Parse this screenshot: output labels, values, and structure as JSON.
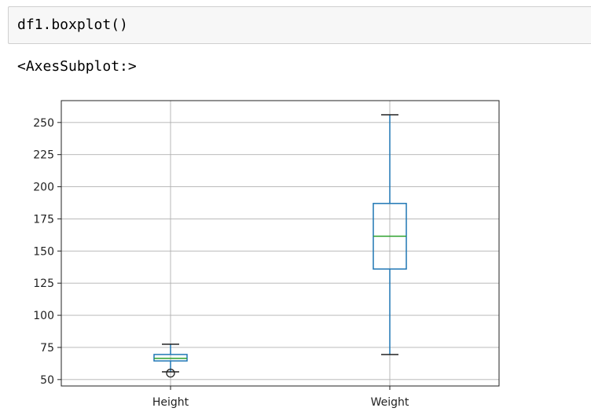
{
  "cell": {
    "code": "df1.boxplot()",
    "output": "<AxesSubplot:>"
  },
  "chart_data": {
    "type": "boxplot",
    "categories": [
      "Height",
      "Weight"
    ],
    "boxes": [
      {
        "category": "Height",
        "whisker_low": 56,
        "q1": 64.5,
        "median": 66.5,
        "q3": 69.5,
        "whisker_high": 77.5,
        "outliers": [
          55
        ]
      },
      {
        "category": "Weight",
        "whisker_low": 69.5,
        "q1": 136,
        "median": 161.5,
        "q3": 187,
        "whisker_high": 256,
        "outliers": []
      }
    ],
    "ylim": [
      45,
      267
    ],
    "yticks": [
      50,
      75,
      100,
      125,
      150,
      175,
      200,
      225,
      250
    ],
    "grid": true,
    "colors": {
      "box": "#1f77b4",
      "median": "#2ca02c",
      "grid": "#b0b0b0"
    }
  }
}
